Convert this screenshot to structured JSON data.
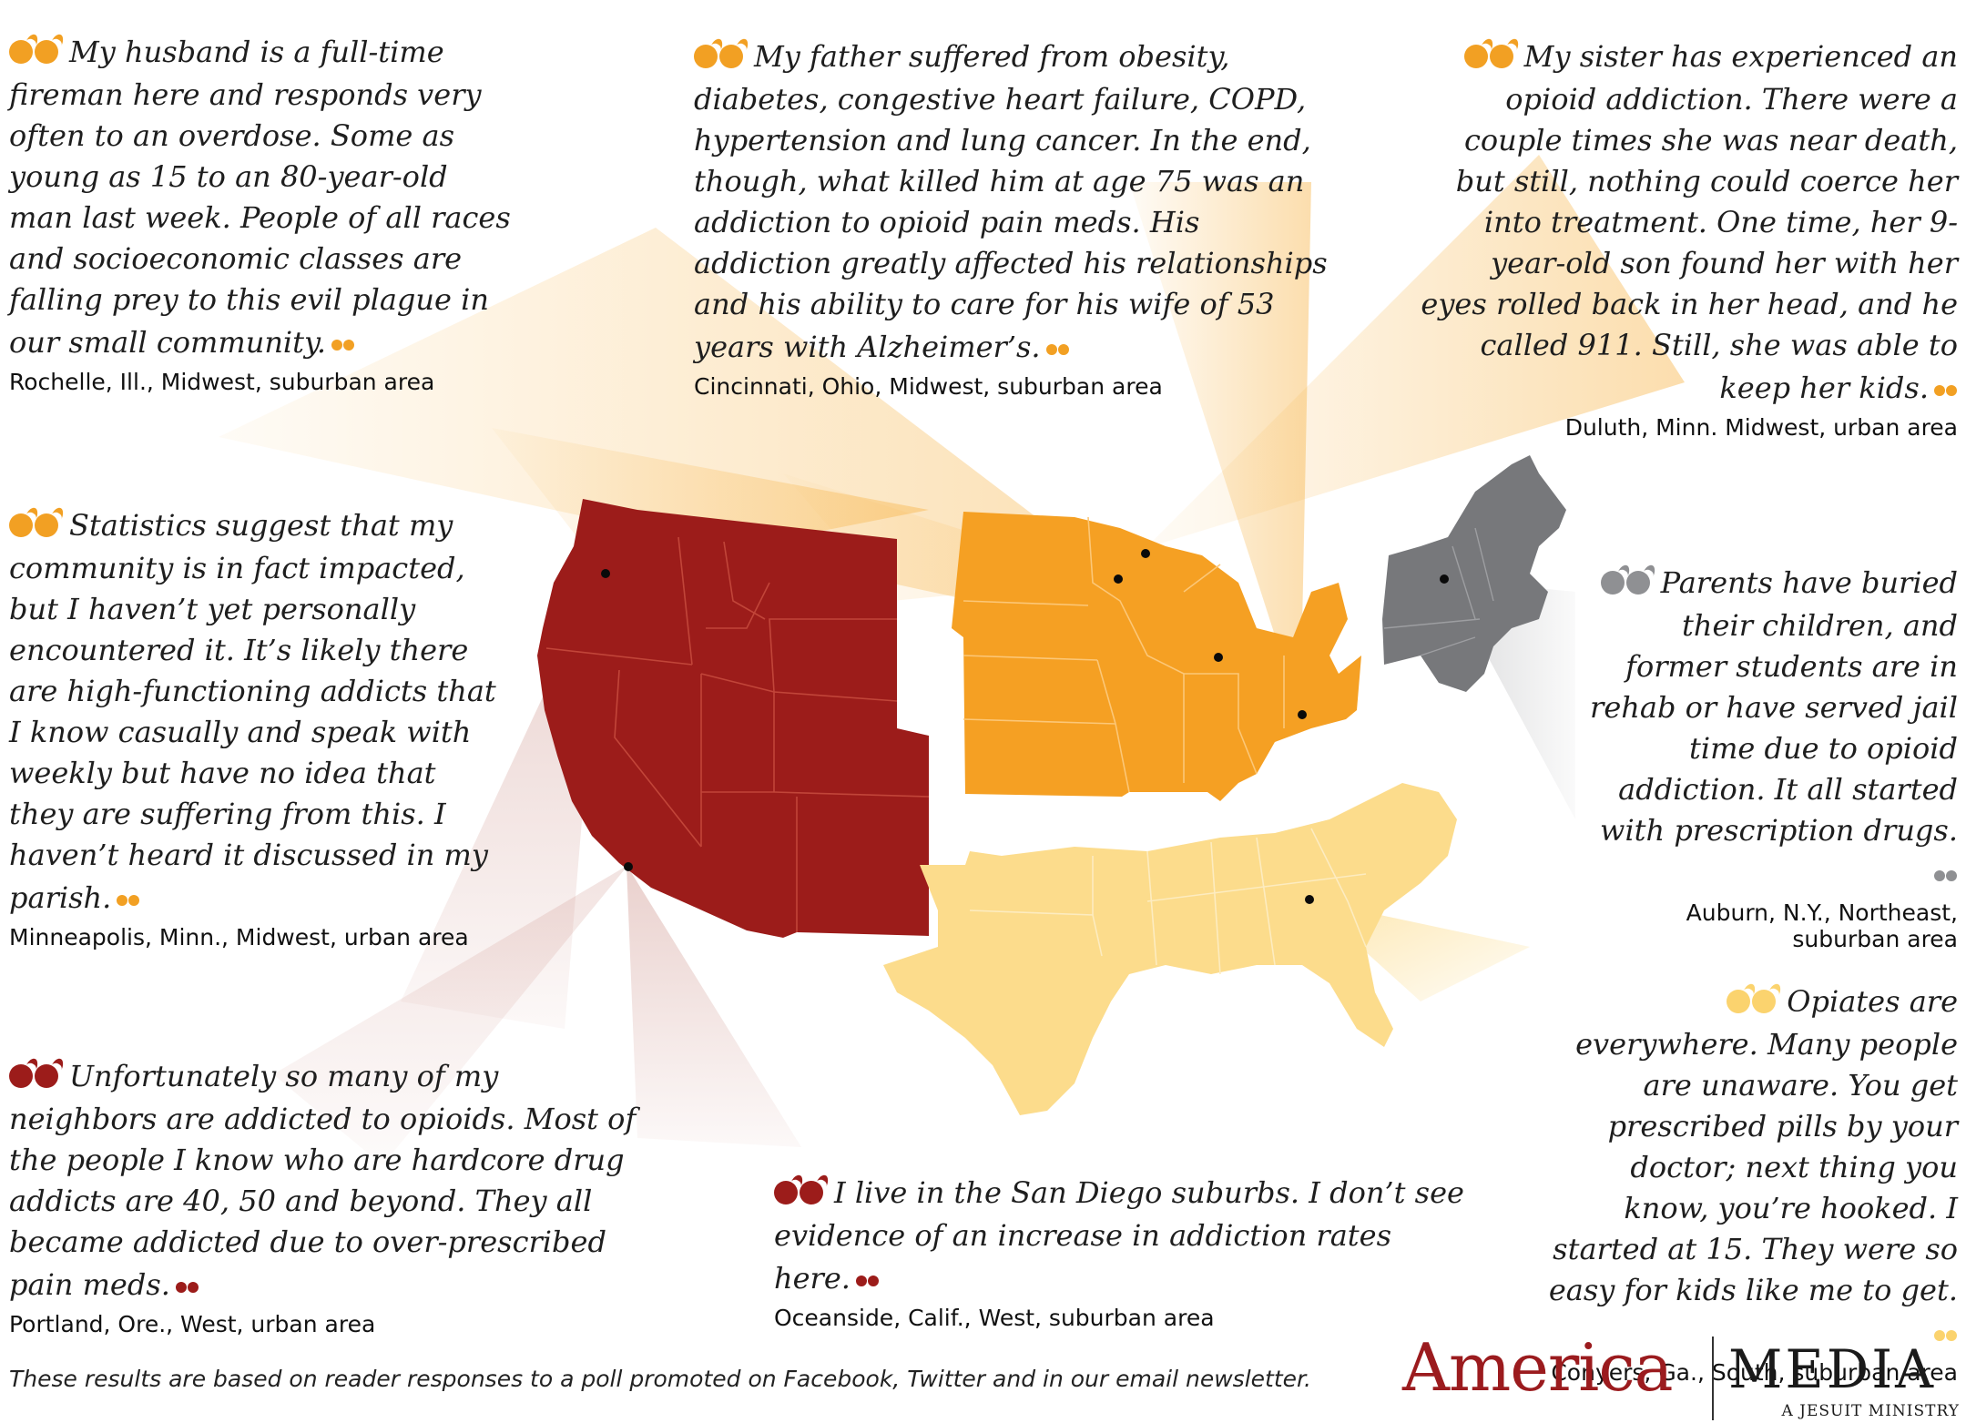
{
  "colors": {
    "west": "#9c1c1a",
    "midwest": "#f5a023",
    "northeast": "#77787b",
    "south": "#fcdc8c",
    "dark_red_quote": "#9c1c1a",
    "orange_quote": "#f2a023",
    "gray_quote": "#8f9093",
    "yellow_quote": "#fbd36e",
    "brand": "#9b1b1e"
  },
  "icons": [
    "quote-open-icon",
    "quote-close-icon",
    "location-dot-icon"
  ],
  "quotes": [
    {
      "id": "rochelle",
      "text": "My husband is a full-time fireman here and responds very often to an overdose. Some as young as 15 to an 80-year-old man last week. People of all races and socioeconomic classes are falling prey to this evil plague in our small community.",
      "location": "Rochelle, Ill., Midwest, suburban area",
      "color": "#f2a023"
    },
    {
      "id": "cincinnati",
      "text": "My father suffered from obesity, diabetes, congestive heart failure, COPD, hypertension and lung cancer. In the end, though, what killed him at age 75 was an addiction to opioid pain meds. His addiction greatly affected his relationships and his ability to care for his wife of 53 years with Alzheimer’s.",
      "location": "Cincinnati, Ohio, Midwest, suburban area",
      "color": "#f2a023"
    },
    {
      "id": "duluth",
      "text": "My sister has experienced an opioid addiction. There were a couple times she was near death, but still, nothing could coerce her into treatment. One time, her 9-year-old son found her with her eyes rolled back in her head, and he called 911. Still, she was able to keep her kids.",
      "location": "Duluth, Minn. Midwest, urban area",
      "color": "#f2a023"
    },
    {
      "id": "minneapolis",
      "text": "Statistics suggest that my community is in fact impacted, but I haven’t yet personally encountered it. It’s likely there are high-functioning addicts that I know casually and speak with weekly but have no idea that they are suffering from this. I haven’t heard it discussed in my parish.",
      "location": "Minneapolis, Minn., Midwest, urban area",
      "color": "#f2a023"
    },
    {
      "id": "auburn",
      "text": "Parents have buried their children, and former students are in rehab or have served jail time due to opioid addiction. It all started with prescription drugs.",
      "location": "Auburn, N.Y., Northeast, suburban area",
      "color": "#8f9093"
    },
    {
      "id": "conyers",
      "text": "Opiates are everywhere. Many people are unaware. You get prescribed pills by your doctor; next thing you know, you’re hooked. I started at 15. They were so easy for kids like me to get.",
      "location": "Conyers, Ga., South, suburban area",
      "color": "#fbd36e"
    },
    {
      "id": "portland",
      "text": "Unfortunately so many of my neighbors are addicted to opioids. Most of the people I know who are hardcore drug addicts are 40, 50 and beyond. They all became addicted due to over-prescribed pain meds.",
      "location": "Portland, Ore., West, urban area",
      "color": "#9c1c1a"
    },
    {
      "id": "oceanside",
      "text": "I live in the San Diego suburbs. I don’t see evidence of an increase in addiction rates here.",
      "location": "Oceanside, Calif., West, suburban area",
      "color": "#9c1c1a"
    }
  ],
  "footnote": "These results are based on reader responses to a poll promoted on Facebook, Twitter and in our email newsletter.",
  "logo": {
    "brand": "America",
    "media": "MEDIA",
    "tagline": "A JESUIT MINISTRY"
  }
}
